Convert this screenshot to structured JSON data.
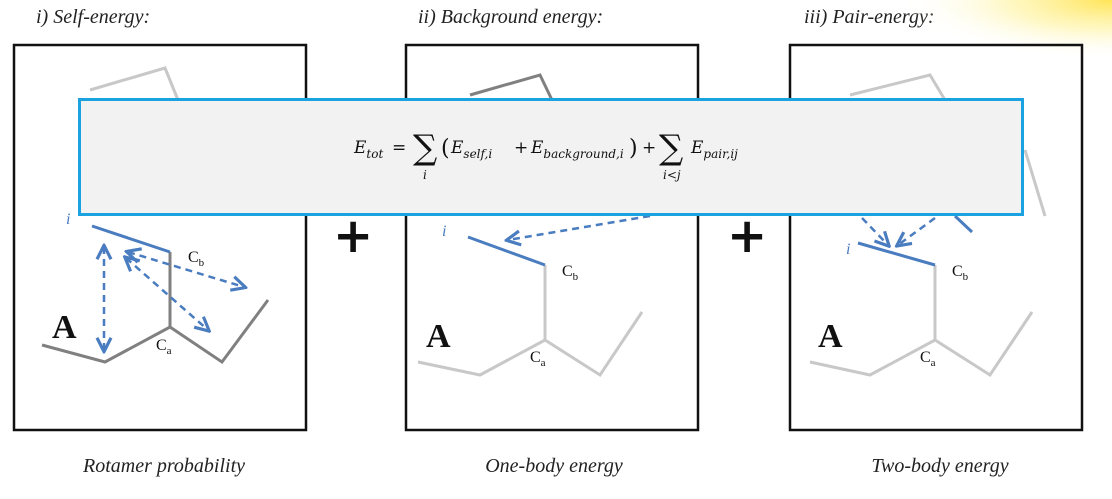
{
  "panels": [
    {
      "title": "i) Self-energy:",
      "caption": "Rotamer probability"
    },
    {
      "title": "ii) Background energy:",
      "caption": "One-body energy"
    },
    {
      "title": "iii) Pair-energy:",
      "caption": "Two-body energy"
    }
  ],
  "labels": {
    "residue": "A",
    "cb": "C",
    "ca": "C",
    "cb_sub": "b",
    "ca_sub": "a",
    "rotamer_index": "i",
    "plus": "+"
  },
  "formula": {
    "lhs": "E",
    "lhs_sub": "tot",
    "eq": "=",
    "sum1_index": "i",
    "term1": "E",
    "term1_sub": "self,i",
    "plus": "+",
    "term2": "E",
    "term2_sub": "background,i",
    "sum2_index": "i<j",
    "term3": "E",
    "term3_sub": "pair,ij",
    "sigma": "∑",
    "lparen": "(",
    "rparen": ")",
    "plus2": "+"
  },
  "colors": {
    "accent_blue": "#4a7cc0",
    "box_border": "#1aa3e0",
    "dark_gray": "#808080",
    "light_gray": "#c8c8c8"
  }
}
